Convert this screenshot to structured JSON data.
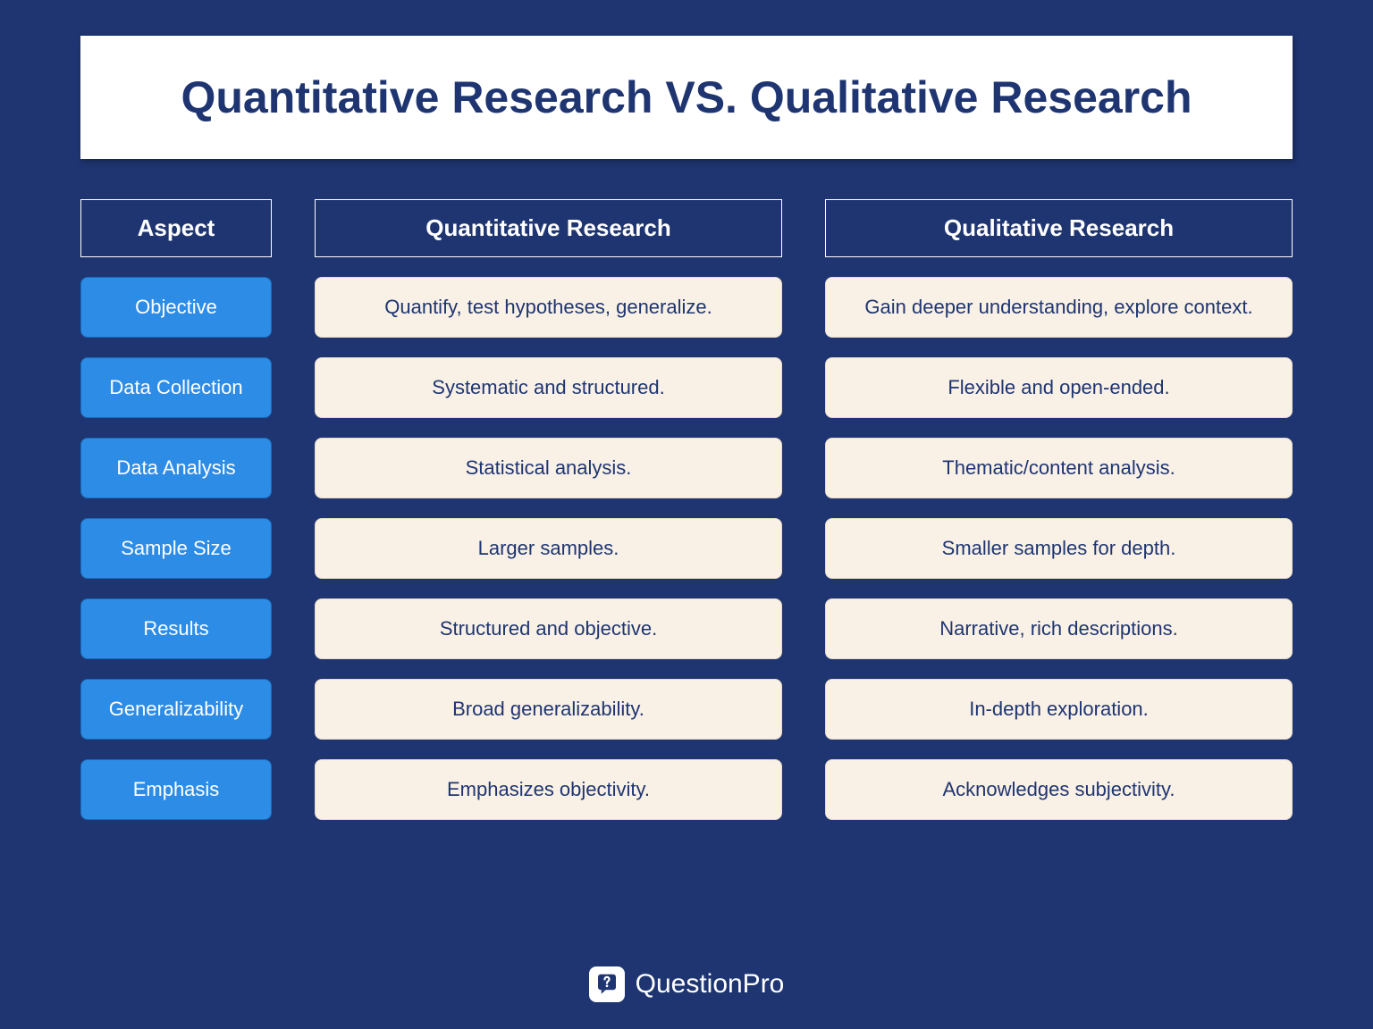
{
  "title": "Quantitative Research VS. Qualitative Research",
  "columns": {
    "aspect": "Aspect",
    "quantitative": "Quantitative Research",
    "qualitative": "Qualitative Research"
  },
  "rows": [
    {
      "aspect": "Objective",
      "quantitative": "Quantify, test hypotheses, generalize.",
      "qualitative": "Gain deeper understanding, explore context."
    },
    {
      "aspect": "Data Collection",
      "quantitative": "Systematic and structured.",
      "qualitative": "Flexible and open-ended."
    },
    {
      "aspect": "Data Analysis",
      "quantitative": "Statistical analysis.",
      "qualitative": "Thematic/content analysis."
    },
    {
      "aspect": "Sample Size",
      "quantitative": "Larger samples.",
      "qualitative": "Smaller samples for depth."
    },
    {
      "aspect": "Results",
      "quantitative": "Structured and objective.",
      "qualitative": "Narrative, rich descriptions."
    },
    {
      "aspect": "Generalizability",
      "quantitative": "Broad generalizability.",
      "qualitative": "In-depth exploration."
    },
    {
      "aspect": "Emphasis",
      "quantitative": "Emphasizes objectivity.",
      "qualitative": "Acknowledges subjectivity."
    }
  ],
  "brand": "QuestionPro",
  "styling": {
    "background_color": "#1e3571",
    "title_bg": "#ffffff",
    "title_color": "#1e3571",
    "title_fontsize": 50,
    "header_border": "#ffffff",
    "header_text": "#ffffff",
    "header_fontsize": 26,
    "aspect_bg": "#2d8ce6",
    "aspect_border": "#1a6cb8",
    "aspect_text": "#ffffff",
    "aspect_fontsize": 22,
    "data_bg": "#faf1e6",
    "data_border": "#e8dac8",
    "data_text": "#1e3571",
    "data_fontsize": 22,
    "border_radius": 8,
    "col_aspect_width": 214,
    "col_gap": 48,
    "row_gap": 22,
    "brand_fontsize": 30,
    "logo_bg": "#ffffff",
    "logo_fg": "#1e3571"
  }
}
